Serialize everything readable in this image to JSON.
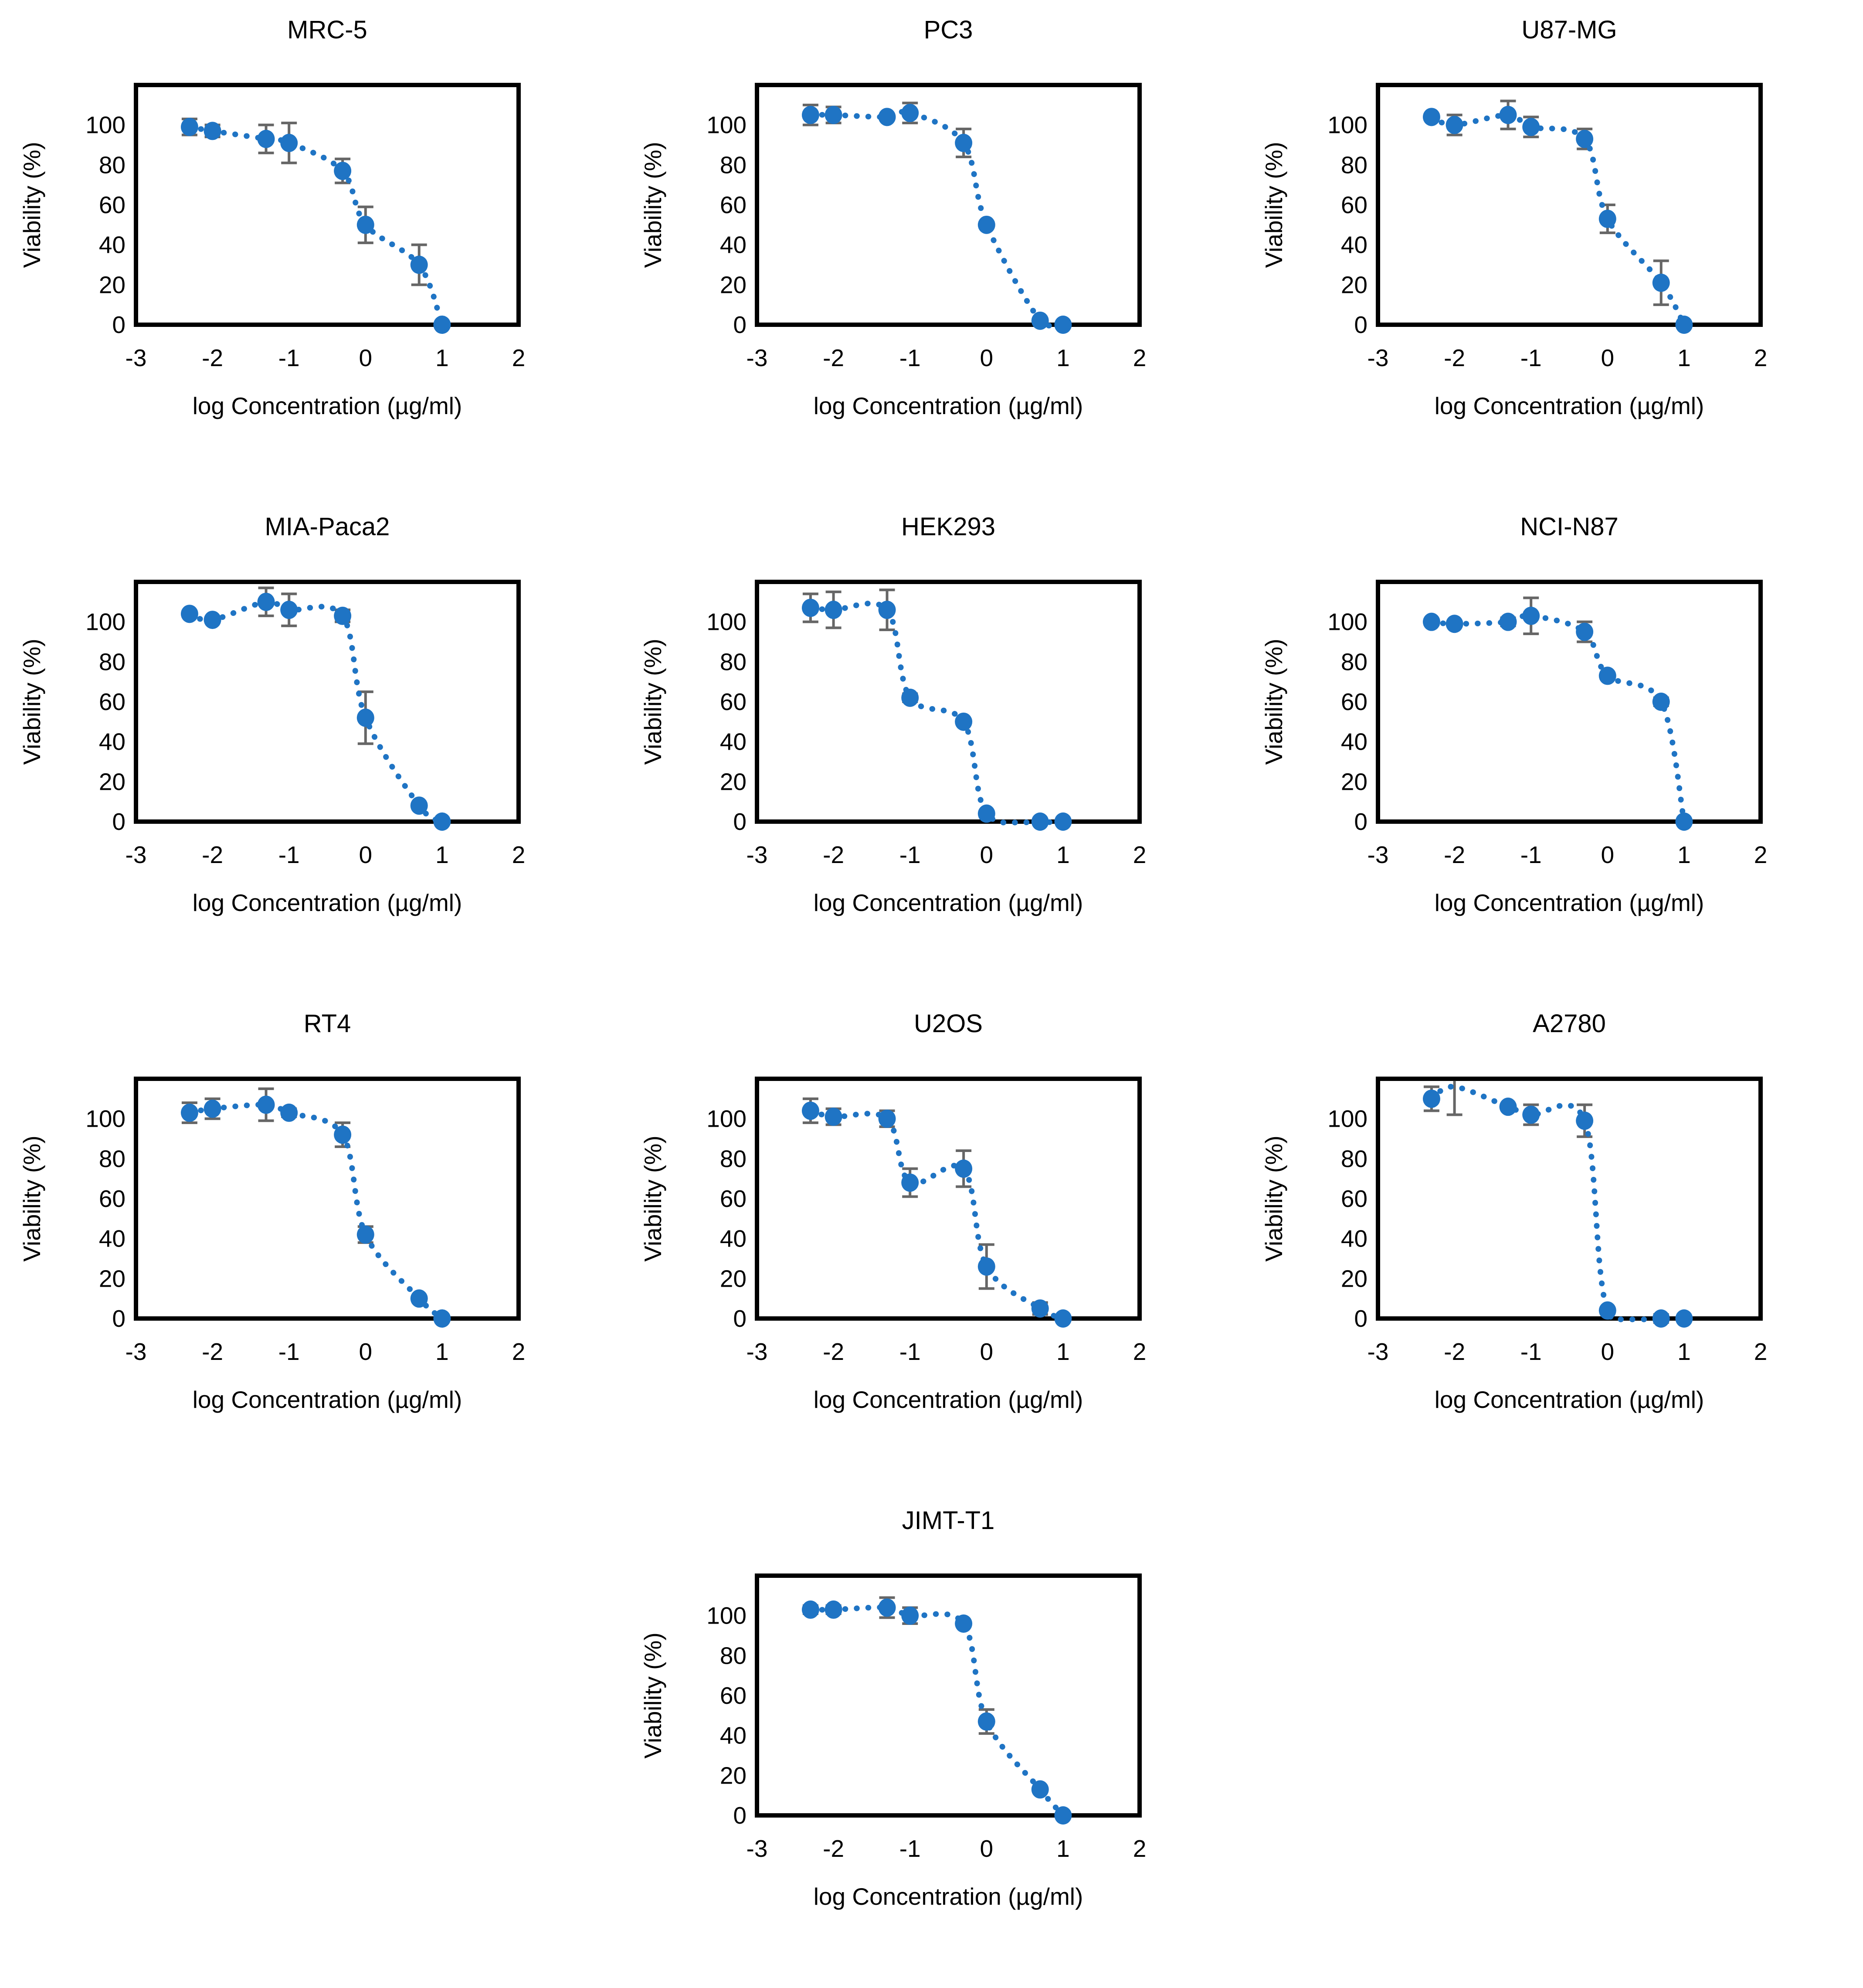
{
  "figure": {
    "background": "#ffffff",
    "marker_color": "#1f74c4",
    "curve_color": "#1f74c4",
    "error_bar_color": "#666666",
    "plot_border_color": "#000000",
    "xlabel": "log Concentration (µg/ml)",
    "ylabel": "Viability (%)",
    "x_ticks": [
      -3,
      -2,
      -1,
      0,
      1,
      2
    ],
    "y_ticks": [
      0,
      20,
      40,
      60,
      80,
      100
    ],
    "xlim": [
      -3,
      2
    ],
    "ylim": [
      0,
      120
    ]
  },
  "chart_data": [
    {
      "type": "scatter",
      "title": "MRC-5",
      "row": 1,
      "col": 1,
      "x": [
        -2.3,
        -2,
        -1.3,
        -1,
        -0.3,
        0,
        0.7,
        1
      ],
      "y": [
        99,
        97,
        93,
        91,
        77,
        50,
        30,
        0
      ],
      "yerr": [
        4,
        3,
        7,
        10,
        6,
        9,
        10,
        0
      ],
      "xlabel": "log Concentration (µg/ml)",
      "ylabel": "Viability (%)"
    },
    {
      "type": "scatter",
      "title": "PC3",
      "row": 1,
      "col": 2,
      "x": [
        -2.3,
        -2,
        -1.3,
        -1,
        -0.3,
        0,
        0.7,
        1
      ],
      "y": [
        105,
        105,
        104,
        106,
        91,
        50,
        2,
        0
      ],
      "yerr": [
        5,
        4,
        0,
        5,
        7,
        0,
        0,
        0
      ],
      "xlabel": "log Concentration (µg/ml)",
      "ylabel": "Viability (%)"
    },
    {
      "type": "scatter",
      "title": "U87-MG",
      "row": 1,
      "col": 3,
      "x": [
        -2.3,
        -2,
        -1.3,
        -1,
        -0.3,
        0,
        0.7,
        1
      ],
      "y": [
        104,
        100,
        105,
        99,
        93,
        53,
        21,
        0
      ],
      "yerr": [
        0,
        5,
        7,
        5,
        5,
        7,
        11,
        0
      ],
      "xlabel": "log Concentration (µg/ml)",
      "ylabel": "Viability (%)"
    },
    {
      "type": "scatter",
      "title": "MIA-Paca2",
      "row": 2,
      "col": 1,
      "x": [
        -2.3,
        -2,
        -1.3,
        -1,
        -0.3,
        0,
        0.7,
        1
      ],
      "y": [
        104,
        101,
        110,
        106,
        103,
        52,
        8,
        0
      ],
      "yerr": [
        0,
        0,
        7,
        8,
        3,
        13,
        0,
        0
      ],
      "xlabel": "log Concentration (µg/ml)",
      "ylabel": "Viability (%)"
    },
    {
      "type": "scatter",
      "title": "HEK293",
      "row": 2,
      "col": 2,
      "x": [
        -2.3,
        -2,
        -1.3,
        -1,
        -0.3,
        0,
        0.7,
        1
      ],
      "y": [
        107,
        106,
        106,
        62,
        50,
        4,
        0,
        0
      ],
      "yerr": [
        7,
        9,
        10,
        2,
        0,
        0,
        0,
        0
      ],
      "xlabel": "log Concentration (µg/ml)",
      "ylabel": "Viability (%)"
    },
    {
      "type": "scatter",
      "title": "NCI-N87",
      "row": 2,
      "col": 3,
      "x": [
        -2.3,
        -2,
        -1.3,
        -1,
        -0.3,
        0,
        0.7,
        1
      ],
      "y": [
        100,
        99,
        100,
        103,
        95,
        73,
        60,
        0
      ],
      "yerr": [
        0,
        0,
        2,
        9,
        5,
        0,
        2,
        0
      ],
      "xlabel": "log Concentration (µg/ml)",
      "ylabel": "Viability (%)"
    },
    {
      "type": "scatter",
      "title": "RT4",
      "row": 3,
      "col": 1,
      "x": [
        -2.3,
        -2,
        -1.3,
        -1,
        -0.3,
        0,
        0.7,
        1
      ],
      "y": [
        103,
        105,
        107,
        103,
        92,
        42,
        10,
        0
      ],
      "yerr": [
        5,
        5,
        8,
        2,
        6,
        4,
        0,
        0
      ],
      "xlabel": "log Concentration (µg/ml)",
      "ylabel": "Viability (%)"
    },
    {
      "type": "scatter",
      "title": "U2OS",
      "row": 3,
      "col": 2,
      "x": [
        -2.3,
        -2,
        -1.3,
        -1,
        -0.3,
        0,
        0.7,
        1
      ],
      "y": [
        104,
        101,
        100,
        68,
        75,
        26,
        5,
        0
      ],
      "yerr": [
        6,
        4,
        4,
        7,
        9,
        11,
        3,
        0
      ],
      "xlabel": "log Concentration (µg/ml)",
      "ylabel": "Viability (%)"
    },
    {
      "type": "scatter",
      "title": "A2780",
      "row": 3,
      "col": 3,
      "x": [
        -2.3,
        -2,
        -1.3,
        -1,
        -0.3,
        0,
        0.7,
        1
      ],
      "y": [
        110,
        122,
        106,
        102,
        99,
        4,
        0,
        0
      ],
      "yerr": [
        6,
        20,
        0,
        5,
        8,
        0,
        2,
        0
      ],
      "xlabel": "log Concentration (µg/ml)",
      "ylabel": "Viability (%)"
    },
    {
      "type": "scatter",
      "title": "JIMT-T1",
      "row": 4,
      "col": 2,
      "x": [
        -2.3,
        -2,
        -1.3,
        -1,
        -0.3,
        0,
        0.7,
        1
      ],
      "y": [
        103,
        103,
        104,
        100,
        96,
        47,
        13,
        0
      ],
      "yerr": [
        2,
        2,
        5,
        4,
        0,
        6,
        0,
        0
      ],
      "xlabel": "log Concentration (µg/ml)",
      "ylabel": "Viability (%)"
    }
  ]
}
